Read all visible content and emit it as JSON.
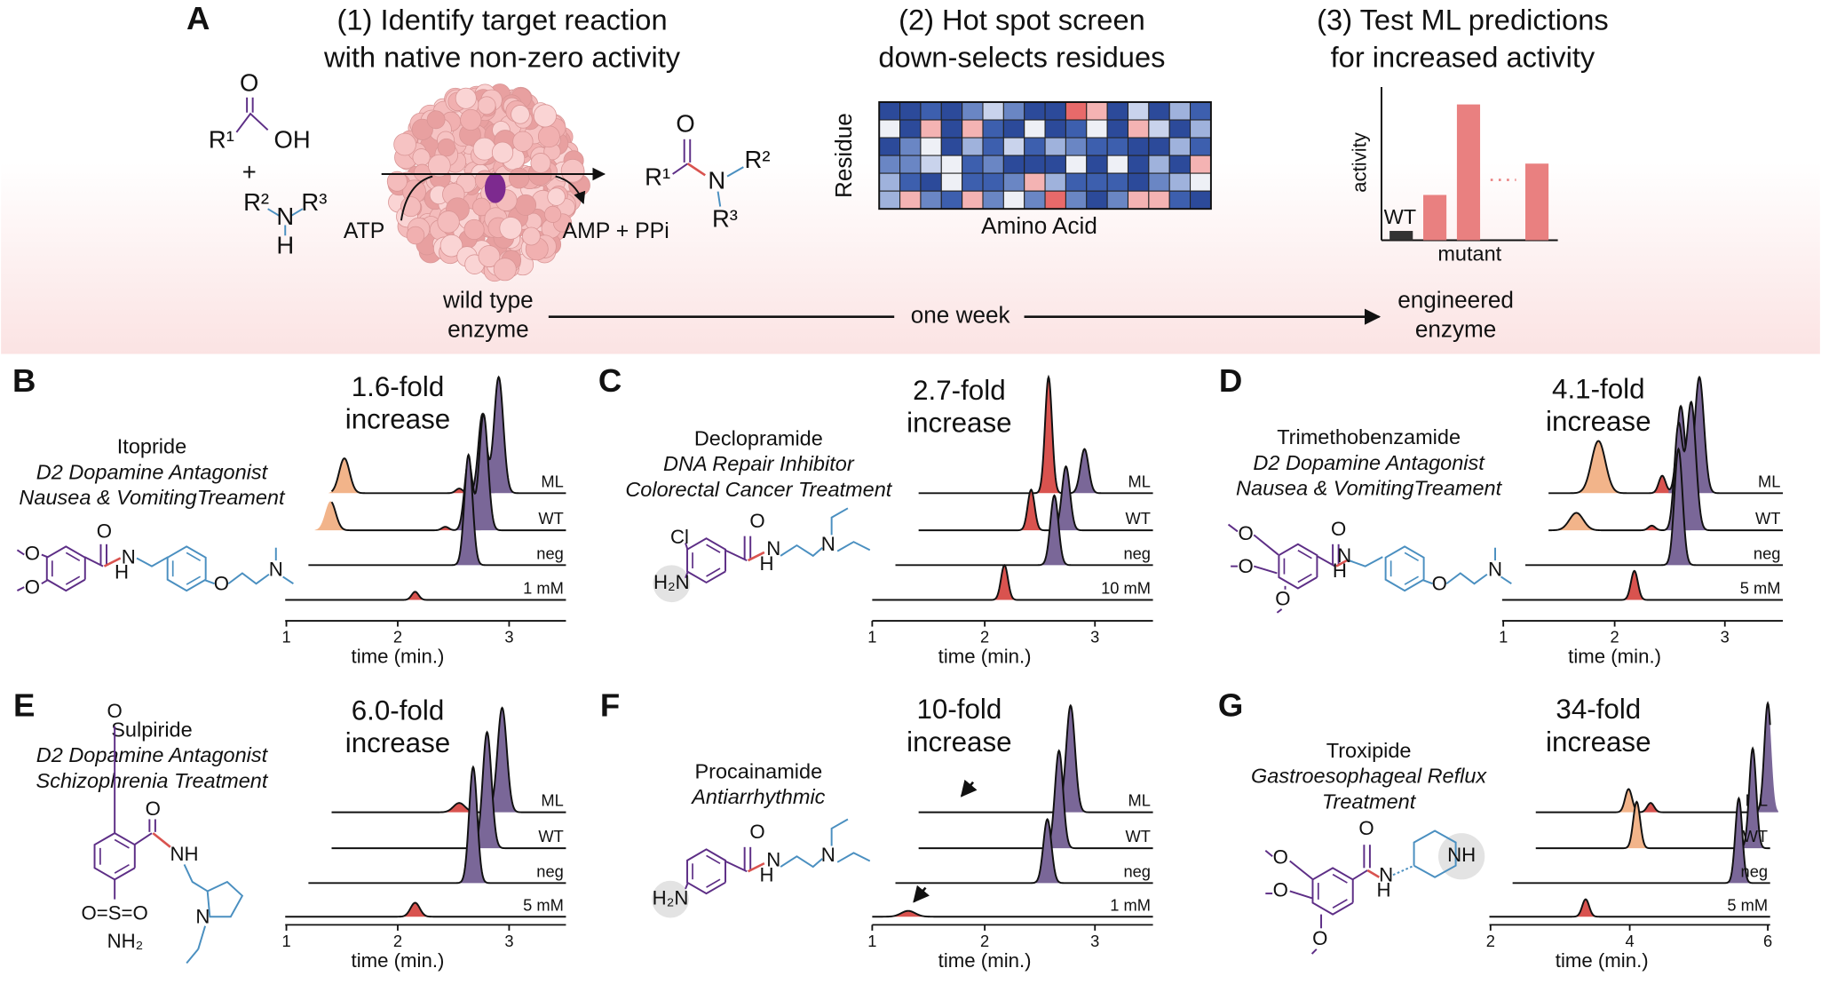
{
  "panel_a": {
    "label": "A",
    "steps": [
      [
        "(1) Identify target reaction",
        "with native non-zero activity"
      ],
      [
        "(2) Hot spot screen",
        "down-selects residues"
      ],
      [
        "(3) Test ML predictions",
        "for increased activity"
      ]
    ],
    "reaction": [
      "O",
      "R¹",
      "OH",
      "+",
      "R²",
      "N",
      "R³",
      "H",
      "ATP",
      "AMP + PPi",
      "O",
      "R¹",
      "N",
      "R²",
      "R³"
    ],
    "heatmap": {
      "y_label": "Residue",
      "x_label": "Amino Acid"
    },
    "activity_plot": {
      "y_label": "activity",
      "x_label": "mutant",
      "wt_label": "WT"
    },
    "timeline": {
      "start": [
        "wild type",
        "enzyme"
      ],
      "middle": "one week",
      "end": [
        "engineered",
        "enzyme"
      ]
    }
  },
  "panels": [
    {
      "label": "B",
      "name": "Itopride",
      "descriptions": [
        "D2 Dopamine Antagonist",
        "Nausea & VomitingTreament"
      ],
      "fold": [
        "1.6-fold",
        "increase"
      ],
      "traces": [
        "ML",
        "WT",
        "neg"
      ],
      "concentration": "1 mM",
      "xticks": [
        1,
        2,
        3
      ],
      "x_label": "time (min.)",
      "atoms": [
        "O",
        "O",
        "O",
        "N",
        "H",
        "O",
        "N"
      ]
    },
    {
      "label": "C",
      "name": "Declopramide",
      "descriptions": [
        "DNA Repair Inhibitor",
        "Colorectal Cancer Treatment"
      ],
      "fold": [
        "2.7-fold",
        "increase"
      ],
      "traces": [
        "ML",
        "WT",
        "neg"
      ],
      "concentration": "10 mM",
      "xticks": [
        1,
        2,
        3
      ],
      "x_label": "time (min.)",
      "atoms": [
        "O",
        "Cl",
        "H₂N",
        "N",
        "H",
        "N"
      ]
    },
    {
      "label": "D",
      "name": "Trimethobenzamide",
      "descriptions": [
        "D2 Dopamine Antagonist",
        "Nausea & VomitingTreament"
      ],
      "fold": [
        "4.1-fold",
        "increase"
      ],
      "traces": [
        "ML",
        "WT",
        "neg"
      ],
      "concentration": "5 mM",
      "xticks": [
        1,
        2,
        3
      ],
      "x_label": "time (min.)",
      "atoms": [
        "O",
        "O",
        "O",
        "O",
        "N",
        "H",
        "O",
        "N"
      ]
    },
    {
      "label": "E",
      "name": "Sulpiride",
      "descriptions": [
        "D2 Dopamine Antagonist",
        "Schizophrenia Treatment"
      ],
      "fold": [
        "6.0-fold",
        "increase"
      ],
      "traces": [
        "ML",
        "WT",
        "neg"
      ],
      "concentration": "5 mM",
      "xticks": [
        1,
        2,
        3
      ],
      "x_label": "time (min.)",
      "atoms": [
        "O",
        "O",
        "NH",
        "O=S=O",
        "NH₂",
        "N"
      ]
    },
    {
      "label": "F",
      "name": "Procainamide",
      "descriptions": [
        "Antiarrhythmic"
      ],
      "fold": [
        "10-fold",
        "increase"
      ],
      "traces": [
        "ML",
        "WT",
        "neg"
      ],
      "concentration": "1 mM",
      "xticks": [
        1,
        2,
        3
      ],
      "x_label": "time (min.)",
      "atoms": [
        "O",
        "H₂N",
        "N",
        "H",
        "N"
      ]
    },
    {
      "label": "G",
      "name": "Troxipide",
      "descriptions": [
        "Gastroesophageal Reflux",
        "Treatment"
      ],
      "fold": [
        "34-fold",
        "increase"
      ],
      "traces": [
        "ML",
        "WT",
        "neg"
      ],
      "concentration": "5 mM",
      "xticks": [
        2,
        4,
        6
      ],
      "x_label": "time (min.)",
      "atoms": [
        "O",
        "O",
        "O",
        "O",
        "N",
        "H",
        "NH"
      ]
    }
  ]
}
